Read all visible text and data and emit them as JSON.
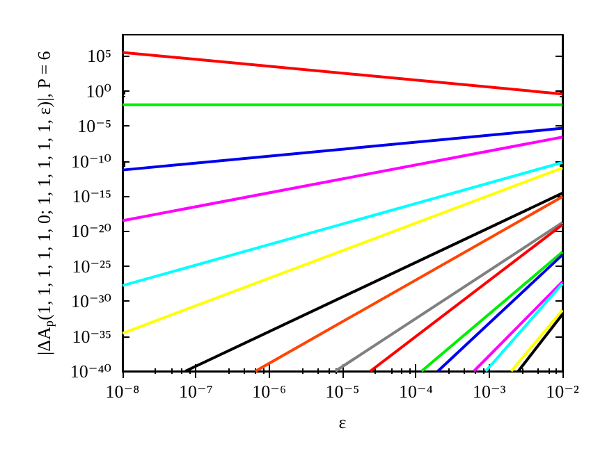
{
  "chart_data": {
    "type": "line",
    "xlabel": "ε",
    "ylabel": "|ΔA$_{p}$(1, 1, 1, 1, 1, 0; 1, 1, 1, 1, 1, ε)|, P = 6",
    "log": "xy",
    "grid": false,
    "marker": "none",
    "line_style": "solid",
    "xlim": [
      1e-08,
      0.01
    ],
    "ylim": [
      1e-40,
      100000000.0
    ],
    "xticks": [
      {
        "value": 1e-08,
        "label": "10⁻⁸"
      },
      {
        "value": 1e-07,
        "label": "10⁻⁷"
      },
      {
        "value": 1e-06,
        "label": "10⁻⁶"
      },
      {
        "value": 1e-05,
        "label": "10⁻⁵"
      },
      {
        "value": 0.0001,
        "label": "10⁻⁴"
      },
      {
        "value": 0.001,
        "label": "10⁻³"
      },
      {
        "value": 0.01,
        "label": "10⁻²"
      }
    ],
    "yticks": [
      {
        "value": 100000.0,
        "label": "10⁵"
      },
      {
        "value": 1,
        "label": "10⁰"
      },
      {
        "value": 1e-05,
        "label": "10⁻⁵"
      },
      {
        "value": 1e-10,
        "label": "10⁻¹⁰"
      },
      {
        "value": 1e-15,
        "label": "10⁻¹⁵"
      },
      {
        "value": 1e-20,
        "label": "10⁻²⁰"
      },
      {
        "value": 1e-25,
        "label": "10⁻²⁵"
      },
      {
        "value": 1e-30,
        "label": "10⁻³⁰"
      },
      {
        "value": 1e-35,
        "label": "10⁻³⁵"
      },
      {
        "value": 1e-40,
        "label": "10⁻⁴⁰"
      }
    ],
    "series": [
      {
        "color": "#ff0000",
        "x": [
          1e-08,
          0.01
        ],
        "values": [
          300000.0,
          0.35
        ]
      },
      {
        "color": "#00ee00",
        "x": [
          1e-08,
          0.01
        ],
        "values": [
          0.01,
          0.01
        ]
      },
      {
        "color": "#0000ee",
        "x": [
          1e-08,
          0.01
        ],
        "values": [
          5e-12,
          4.5e-06
        ]
      },
      {
        "color": "#ff00ff",
        "x": [
          1e-08,
          0.01
        ],
        "values": [
          3e-19,
          2.5e-07
        ]
      },
      {
        "color": "#00ffff",
        "x": [
          1e-08,
          0.01
        ],
        "values": [
          1.6e-28,
          6e-11
        ]
      },
      {
        "color": "#ffff00",
        "x": [
          1e-08,
          0.01
        ],
        "values": [
          2.5e-35,
          1e-11
        ]
      },
      {
        "color": "#000000",
        "x": [
          7.2e-08,
          0.01
        ],
        "values": [
          1e-40,
          2.5e-15
        ]
      },
      {
        "color": "#ff4500",
        "x": [
          6.5e-07,
          0.01
        ],
        "values": [
          1e-40,
          8e-16
        ]
      },
      {
        "color": "#808080",
        "x": [
          8e-06,
          0.01
        ],
        "values": [
          1e-40,
          1.6e-19
        ]
      },
      {
        "color": "#ff0000",
        "x": [
          2.4e-05,
          0.01
        ],
        "values": [
          1e-40,
          8e-20
        ]
      },
      {
        "color": "#00ee00",
        "x": [
          0.00012,
          0.01
        ],
        "values": [
          1e-40,
          1e-23
        ]
      },
      {
        "color": "#0000ee",
        "x": [
          0.0002,
          0.01
        ],
        "values": [
          1e-40,
          4e-24
        ]
      },
      {
        "color": "#ff00ff",
        "x": [
          0.00062,
          0.01
        ],
        "values": [
          1e-40,
          6e-28
        ]
      },
      {
        "color": "#00ffff",
        "x": [
          0.0009,
          0.01
        ],
        "values": [
          1e-40,
          3e-28
        ]
      },
      {
        "color": "#ffff00",
        "x": [
          0.002,
          0.01
        ],
        "values": [
          1e-40,
          5e-32
        ]
      },
      {
        "color": "#000000",
        "x": [
          0.0025,
          0.01
        ],
        "values": [
          1e-40,
          1.3e-32
        ]
      }
    ]
  }
}
